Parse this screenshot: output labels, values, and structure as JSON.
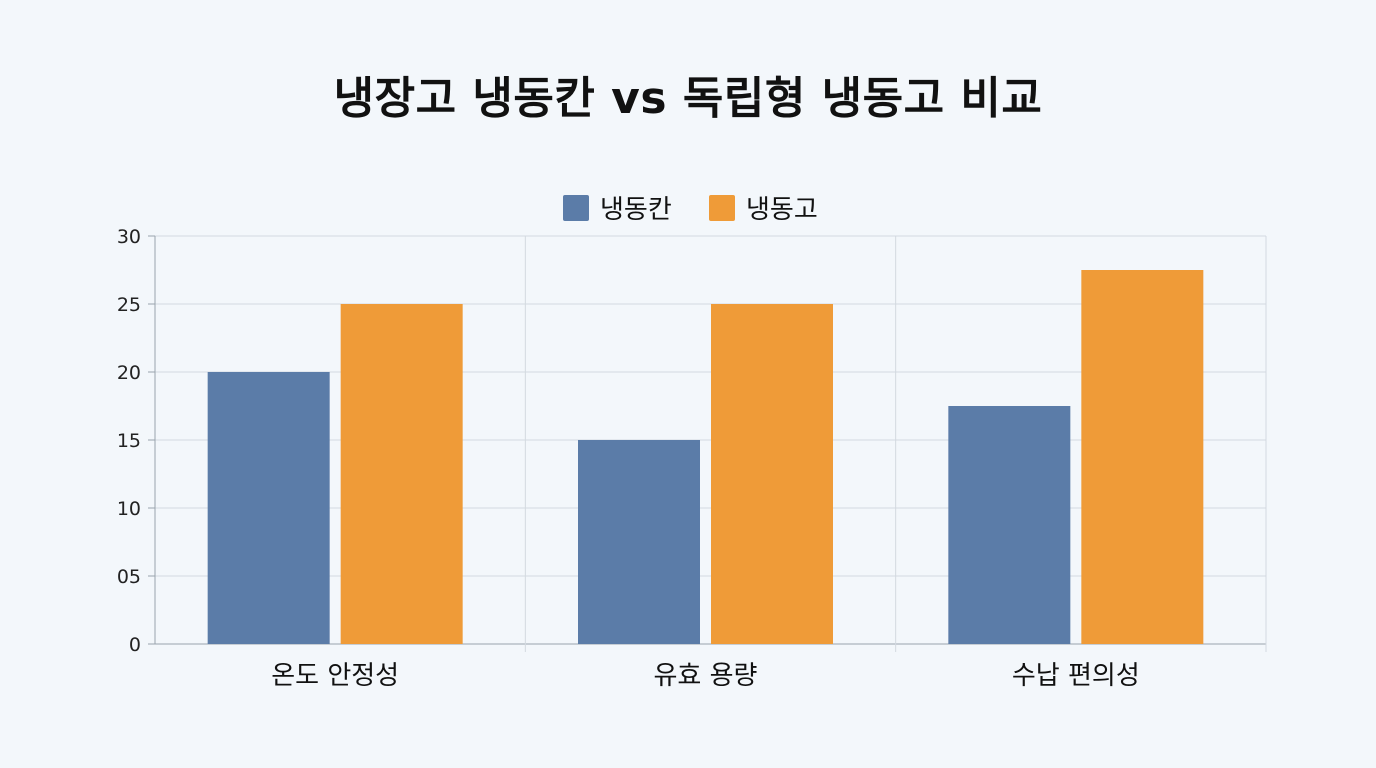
{
  "chart_data": {
    "type": "bar",
    "title": "냉장고 냉동칸 vs 독립형 냉동고 비교",
    "categories": [
      "온도 안정성",
      "유효 용량",
      "수납 편의성"
    ],
    "series": [
      {
        "name": "냉동칸",
        "values": [
          20,
          15,
          17.5
        ],
        "color": "#5b7ca8"
      },
      {
        "name": "냉동고",
        "values": [
          25,
          25,
          27.5
        ],
        "color": "#ef9b38"
      }
    ],
    "ylim": [
      0,
      30
    ],
    "yticks": [
      {
        "value": 0,
        "label": "0"
      },
      {
        "value": 5,
        "label": "05"
      },
      {
        "value": 10,
        "label": "10"
      },
      {
        "value": 15,
        "label": "15"
      },
      {
        "value": 20,
        "label": "20"
      },
      {
        "value": 25,
        "label": "25"
      },
      {
        "value": 30,
        "label": "30"
      }
    ],
    "xlabel": "",
    "ylabel": "",
    "grid": true,
    "legend_position": "top-center"
  }
}
